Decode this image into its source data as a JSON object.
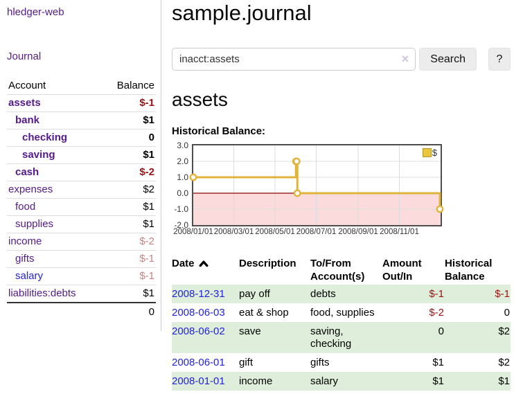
{
  "sidebar": {
    "app_title": "hledger-web",
    "journal_link": "Journal",
    "accounts_table": {
      "headers": {
        "account": "Account",
        "balance": "Balance"
      },
      "rows": [
        {
          "name": "assets",
          "indent": 1,
          "bold": true,
          "balance": "$-1",
          "neg": "strong"
        },
        {
          "name": "bank",
          "indent": 2,
          "bold": true,
          "balance": "$1"
        },
        {
          "name": "checking",
          "indent": 3,
          "bold": true,
          "balance": "0"
        },
        {
          "name": "saving",
          "indent": 3,
          "bold": true,
          "balance": "$1"
        },
        {
          "name": "cash",
          "indent": 2,
          "bold": true,
          "balance": "$-2",
          "neg": "strong"
        },
        {
          "name": "expenses",
          "indent": 1,
          "bold": false,
          "balance": "$2"
        },
        {
          "name": "food",
          "indent": 2,
          "bold": false,
          "balance": "$1"
        },
        {
          "name": "supplies",
          "indent": 2,
          "bold": false,
          "balance": "$1"
        },
        {
          "name": "income",
          "indent": 1,
          "bold": false,
          "balance": "$-2",
          "neg": "soft"
        },
        {
          "name": "gifts",
          "indent": 2,
          "bold": false,
          "balance": "$-1",
          "neg": "soft"
        },
        {
          "name": "salary",
          "indent": 2,
          "bold": false,
          "balance": "$-1",
          "neg": "soft",
          "link": "blue"
        },
        {
          "name": "liabilities:debts",
          "indent": 1,
          "bold": false,
          "balance": "$1"
        }
      ],
      "total": "0"
    }
  },
  "header": {
    "title": "sample.journal"
  },
  "search": {
    "query": "inacct:assets",
    "clear_icon": "×",
    "search_button_label": "Search",
    "help_button_label": "?"
  },
  "account_page": {
    "title": "assets",
    "chart_label": "Historical Balance:"
  },
  "transactions": {
    "columns": [
      "Date",
      "Description",
      "To/From Account(s)",
      "Amount Out/In",
      "Historical Balance"
    ],
    "rows": [
      {
        "date": "2008-12-31",
        "description": "pay off",
        "accounts": "debts",
        "amount": "$-1",
        "amount_neg": true,
        "balance": "$-1",
        "balance_neg": true,
        "shaded": true
      },
      {
        "date": "2008-06-03",
        "description": "eat & shop",
        "accounts": "food, supplies",
        "amount": "$-2",
        "amount_neg": true,
        "balance": "0",
        "balance_neg": false,
        "shaded": false
      },
      {
        "date": "2008-06-02",
        "description": "save",
        "accounts": "saving, checking",
        "amount": "0",
        "amount_neg": false,
        "balance": "$2",
        "balance_neg": false,
        "shaded": true
      },
      {
        "date": "2008-06-01",
        "description": "gift",
        "accounts": "gifts",
        "amount": "$1",
        "amount_neg": false,
        "balance": "$2",
        "balance_neg": false,
        "shaded": false
      },
      {
        "date": "2008-01-01",
        "description": "income",
        "accounts": "salary",
        "amount": "$1",
        "amount_neg": false,
        "balance": "$1",
        "balance_neg": false,
        "shaded": true
      }
    ]
  },
  "chart_data": {
    "type": "line",
    "title": "Historical Balance",
    "step": true,
    "x_range": [
      "2008-01-01",
      "2009-01-01"
    ],
    "ylim": [
      -2,
      3
    ],
    "yticks": [
      3.0,
      2.0,
      1.0,
      0.0,
      -1.0,
      -2.0
    ],
    "xticks": [
      "2008/01/01",
      "2008/03/01",
      "2008/05/01",
      "2008/07/01",
      "2008/09/01",
      "2008/11/01"
    ],
    "series": [
      {
        "name": "$",
        "color": "#e2b33c",
        "points": [
          [
            "2008-01-01",
            1
          ],
          [
            "2008-06-01",
            2
          ],
          [
            "2008-06-02",
            2
          ],
          [
            "2008-06-03",
            0
          ],
          [
            "2008-12-31",
            -1
          ]
        ]
      }
    ],
    "grid": true,
    "negative_region_fill": "#fbdbdb",
    "zero_line_color": "#8b0000",
    "legend": {
      "label": "$",
      "swatch_color": "#e9c63e",
      "swatch_border": "#b3952c",
      "position": "top-right"
    }
  },
  "colors": {
    "link_purple": "#551a8b",
    "link_blue": "#2222dd",
    "negative_strong": "#9e1111",
    "negative_soft": "#c98282",
    "row_stripe_green": "#dfeeda",
    "chart_line_gold": "#e2b33c"
  }
}
